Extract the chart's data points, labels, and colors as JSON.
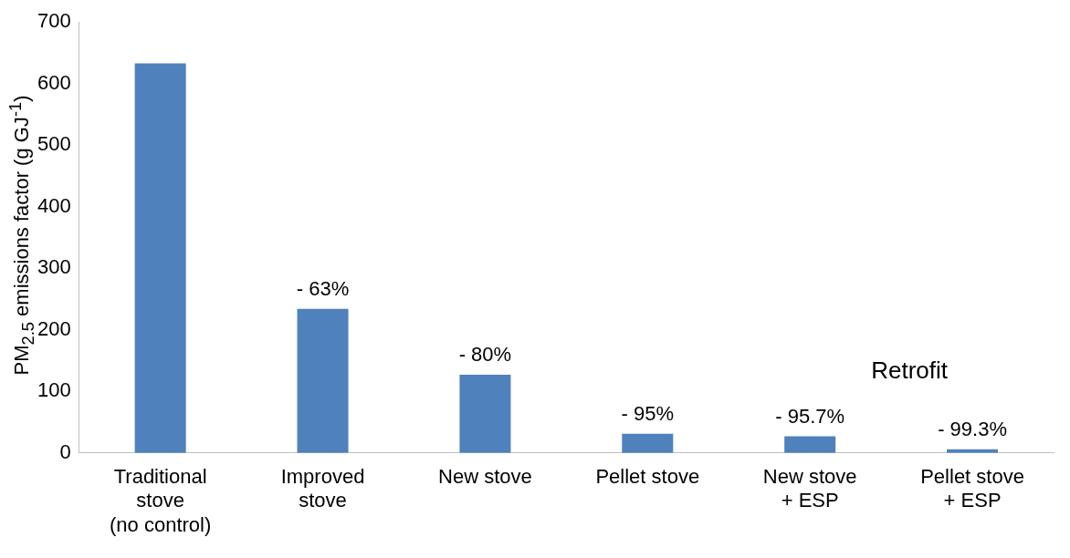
{
  "chart_data": {
    "type": "bar",
    "ylabel": "PM$_{2.5}$ emissions factor (g GJ$^{-1}$)",
    "categories": [
      "Traditional stove (no control)",
      "Improved stove",
      "New stove",
      "Pellet stove",
      "New stove + ESP",
      "Pellet stove + ESP"
    ],
    "values": [
      633,
      234,
      127,
      31,
      27,
      6
    ],
    "color": "#4f81bd",
    "annotations": [
      {
        "text": "- 63%",
        "x": "Improved stove",
        "y": 234
      },
      {
        "text": "- 80%",
        "x": "New stove",
        "y": 127
      },
      {
        "text": "- 95%",
        "x": "Pellet stove",
        "y": 31
      },
      {
        "text": "- 95.7%",
        "x": "New stove + ESP",
        "y": 27
      },
      {
        "text": "- 99.3%",
        "x": "Pellet stove + ESP",
        "y": 6
      },
      "Retrofit"
    ],
    "ylim": [
      0,
      700
    ],
    "yticks": [
      0,
      100,
      200,
      300,
      400,
      500,
      600,
      700
    ],
    "grid": false,
    "legend": false
  }
}
